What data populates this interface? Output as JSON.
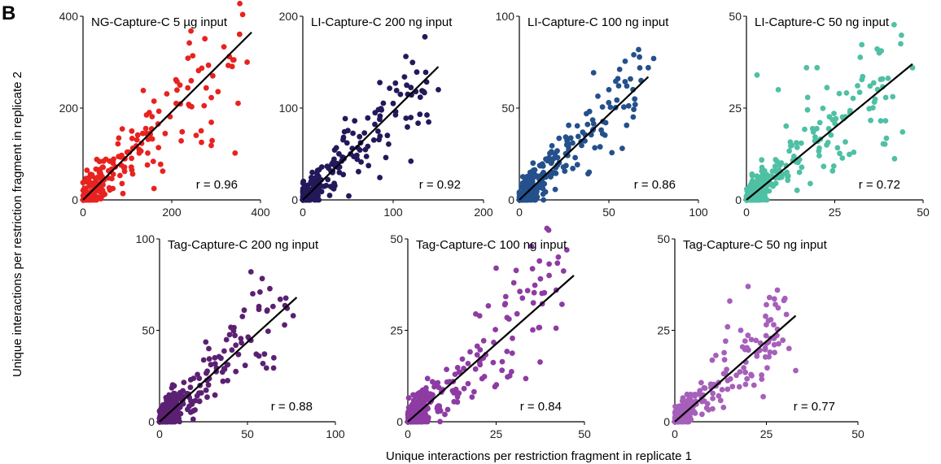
{
  "figure": {
    "panel_letter": "B",
    "xlabel": "Unique interactions per restriction fragment in replicate 1",
    "ylabel": "Unique interactions per restriction fragment in replicate 2"
  },
  "chart_data": [
    {
      "type": "scatter",
      "title": "NG-Capture-C 5 µg input",
      "r_label": "r = 0.96",
      "color": "#e8221f",
      "xlim": [
        0,
        400
      ],
      "ylim": [
        0,
        400
      ],
      "xticks": [
        0,
        200,
        400
      ],
      "yticks": [
        0,
        200,
        400
      ],
      "fit": {
        "x0": 0,
        "y0": 0,
        "x1": 380,
        "y1": 365
      },
      "seed": 11,
      "n_points": 260,
      "highlights": [
        [
          340,
          305
        ],
        [
          370,
          300
        ],
        [
          160,
          215
        ],
        [
          210,
          210
        ],
        [
          240,
          205
        ],
        [
          110,
          150
        ]
      ]
    },
    {
      "type": "scatter",
      "title": "LI-Capture-C 200 ng input",
      "r_label": "r = 0.92",
      "color": "#23195a",
      "xlim": [
        0,
        200
      ],
      "ylim": [
        0,
        200
      ],
      "xticks": [
        0,
        100,
        200
      ],
      "yticks": [
        0,
        100,
        200
      ],
      "fit": {
        "x0": 0,
        "y0": 0,
        "x1": 150,
        "y1": 145
      },
      "seed": 22,
      "n_points": 260,
      "highlights": [
        [
          115,
          125
        ],
        [
          150,
          120
        ],
        [
          108,
          115
        ],
        [
          80,
          95
        ],
        [
          125,
          118
        ],
        [
          100,
          105
        ]
      ]
    },
    {
      "type": "scatter",
      "title": "LI-Capture-C 100 ng input",
      "r_label": "r = 0.86",
      "color": "#24508c",
      "xlim": [
        0,
        100
      ],
      "ylim": [
        0,
        100
      ],
      "xticks": [
        0,
        50,
        100
      ],
      "yticks": [
        0,
        50,
        100
      ],
      "fit": {
        "x0": 0,
        "y0": 0,
        "x1": 72,
        "y1": 67
      },
      "seed": 33,
      "n_points": 280,
      "highlights": [
        [
          75,
          77
        ],
        [
          72,
          72
        ],
        [
          68,
          65
        ],
        [
          60,
          62
        ],
        [
          55,
          66
        ],
        [
          50,
          60
        ]
      ]
    },
    {
      "type": "scatter",
      "title": "LI-Capture-C 50 ng input",
      "r_label": "r = 0.72",
      "color": "#4fc0a4",
      "xlim": [
        0,
        50
      ],
      "ylim": [
        0,
        50
      ],
      "xticks": [
        0,
        25,
        50
      ],
      "yticks": [
        0,
        25,
        50
      ],
      "fit": {
        "x0": 0,
        "y0": 0,
        "x1": 47,
        "y1": 37
      },
      "seed": 44,
      "n_points": 300,
      "highlights": [
        [
          47,
          36
        ],
        [
          17,
          36
        ],
        [
          20,
          36
        ],
        [
          3,
          34
        ],
        [
          35,
          31
        ],
        [
          9,
          30
        ]
      ]
    },
    {
      "type": "scatter",
      "title": "Tag-Capture-C 200 ng input",
      "r_label": "r = 0.88",
      "color": "#5b2072",
      "xlim": [
        0,
        100
      ],
      "ylim": [
        0,
        100
      ],
      "xticks": [
        0,
        50,
        100
      ],
      "yticks": [
        0,
        50,
        100
      ],
      "fit": {
        "x0": 0,
        "y0": 0,
        "x1": 78,
        "y1": 68
      },
      "seed": 55,
      "n_points": 280,
      "highlights": [
        [
          52,
          82
        ],
        [
          53,
          70
        ],
        [
          76,
          58
        ],
        [
          65,
          35
        ],
        [
          55,
          37
        ],
        [
          28,
          40
        ]
      ]
    },
    {
      "type": "scatter",
      "title": "Tag-Capture-C 100 ng input",
      "r_label": "r = 0.84",
      "color": "#8e3ba3",
      "xlim": [
        0,
        50
      ],
      "ylim": [
        0,
        50
      ],
      "xticks": [
        0,
        25,
        50
      ],
      "yticks": [
        0,
        25,
        50
      ],
      "fit": {
        "x0": 0,
        "y0": 0,
        "x1": 47,
        "y1": 40
      },
      "seed": 66,
      "n_points": 300,
      "highlights": [
        [
          35,
          48
        ],
        [
          45,
          47
        ],
        [
          25,
          42
        ],
        [
          40,
          40
        ],
        [
          30,
          38
        ],
        [
          42,
          36
        ]
      ]
    },
    {
      "type": "scatter",
      "title": "Tag-Capture-C 50 ng input",
      "r_label": "r = 0.77",
      "color": "#a65fba",
      "xlim": [
        0,
        50
      ],
      "ylim": [
        0,
        50
      ],
      "xticks": [
        0,
        25,
        50
      ],
      "yticks": [
        0,
        25,
        50
      ],
      "fit": {
        "x0": 0,
        "y0": 0,
        "x1": 33,
        "y1": 29
      },
      "seed": 77,
      "n_points": 280,
      "highlights": [
        [
          20,
          37
        ],
        [
          28,
          36
        ],
        [
          25,
          32
        ],
        [
          15,
          33
        ],
        [
          33,
          14
        ],
        [
          18,
          25
        ]
      ]
    }
  ]
}
